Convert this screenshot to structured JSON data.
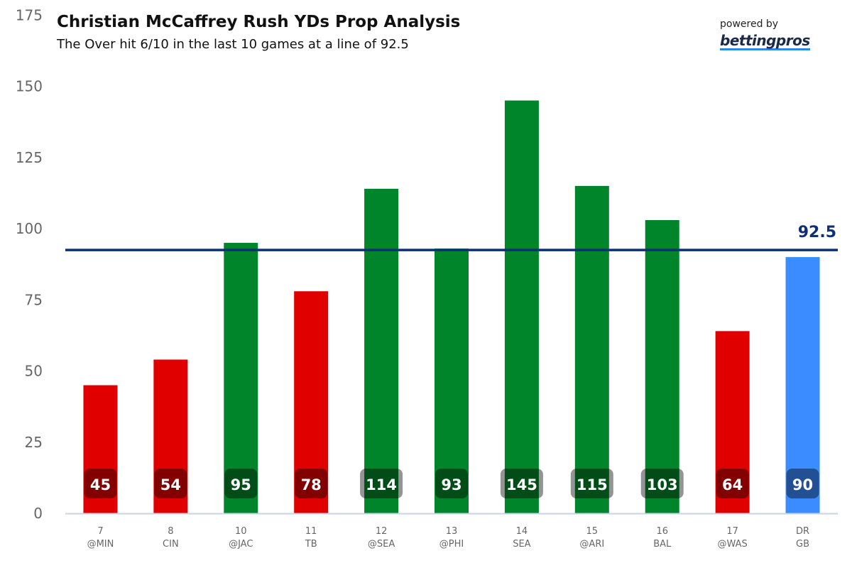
{
  "header": {
    "title": "Christian McCaffrey Rush YDs Prop Analysis",
    "subtitle": "The Over hit 6/10 in the last 10 games at a line of 92.5",
    "powered_by": "powered by",
    "logo_text": "bettingpros"
  },
  "chart_data": {
    "type": "bar",
    "title": "Christian McCaffrey Rush YDs Prop Analysis",
    "subtitle": "The Over hit 6/10 in the last 10 games at a line of 92.5",
    "categories": [
      {
        "week": "7",
        "opp": "@MIN"
      },
      {
        "week": "8",
        "opp": "CIN"
      },
      {
        "week": "10",
        "opp": "@JAC"
      },
      {
        "week": "11",
        "opp": "TB"
      },
      {
        "week": "12",
        "opp": "@SEA"
      },
      {
        "week": "13",
        "opp": "@PHI"
      },
      {
        "week": "14",
        "opp": "SEA"
      },
      {
        "week": "15",
        "opp": "@ARI"
      },
      {
        "week": "16",
        "opp": "BAL"
      },
      {
        "week": "17",
        "opp": "@WAS"
      },
      {
        "week": "DR",
        "opp": "GB"
      }
    ],
    "values": [
      45,
      54,
      95,
      78,
      114,
      93,
      145,
      115,
      103,
      64,
      90
    ],
    "bar_status": [
      "under",
      "under",
      "over",
      "under",
      "over",
      "over",
      "over",
      "over",
      "over",
      "under",
      "projection"
    ],
    "colors": {
      "over": "#00852a",
      "under": "#e00000",
      "projection": "#3a8cff",
      "line": "#0b2f7a",
      "label_box": "rgba(0,0,0,0.42)"
    },
    "line": {
      "value": 92.5,
      "label": "92.5"
    },
    "ylim": [
      0,
      175
    ],
    "yticks": [
      0,
      25,
      50,
      75,
      100,
      125,
      150,
      175
    ],
    "grid": false,
    "legend": "none"
  }
}
